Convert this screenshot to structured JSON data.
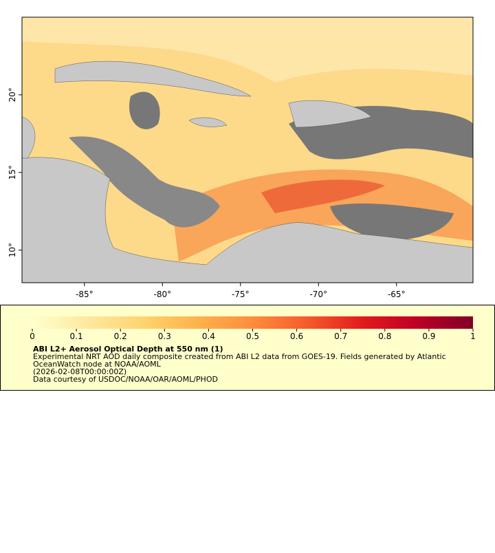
{
  "map": {
    "xlim": [
      -89,
      -60.1
    ],
    "ylim": [
      7.9,
      25
    ],
    "xticks": [
      {
        "value": -85,
        "label": "-85°"
      },
      {
        "value": -80,
        "label": "-80°"
      },
      {
        "value": -75,
        "label": "-75°"
      },
      {
        "value": -70,
        "label": "-70°"
      },
      {
        "value": -65,
        "label": "-65°"
      }
    ],
    "yticks": [
      {
        "value": 10,
        "label": "10°"
      },
      {
        "value": 15,
        "label": "15°"
      },
      {
        "value": 20,
        "label": "20°"
      }
    ]
  },
  "colorbar": {
    "lim": [
      0,
      1
    ],
    "ticks": [
      0,
      0.1,
      0.2,
      0.3,
      0.4,
      0.5,
      0.6,
      0.7,
      0.8,
      0.9,
      1
    ],
    "colors": [
      "#ffffcc",
      "#fee9a0",
      "#fed470",
      "#feb24c",
      "#fd8d3c",
      "#f65a2c",
      "#e31a1c",
      "#bd0026",
      "#800026"
    ]
  },
  "legend": {
    "title": "ABI L2+ Aerosol Optical Depth at 550 nm (1)",
    "lines": [
      "Experimental NRT AOD daily composite created from ABI L2 data from GOES-19. Fields generated by Atlantic",
      "OceanWatch node at NOAA/AOML",
      "(2026-02-08T00:00:00Z)",
      "Data courtesy of USDOC/NOAA/OAR/AOML/PHOD"
    ]
  }
}
